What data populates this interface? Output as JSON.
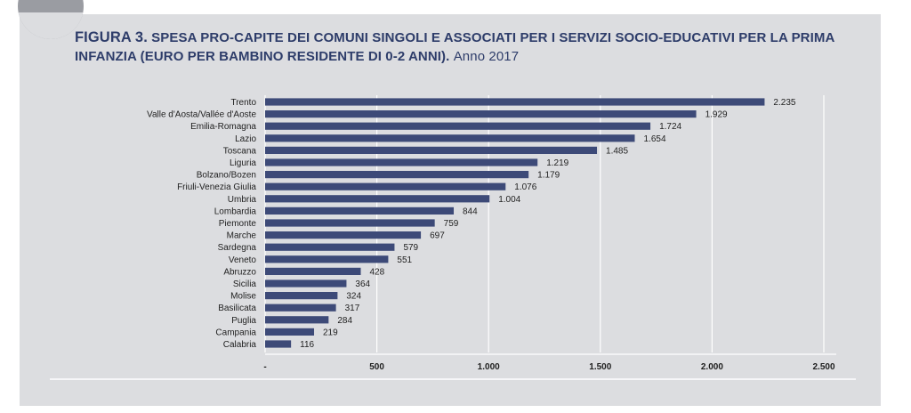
{
  "figure": {
    "label": "FIGURA 3.",
    "title": "SPESA PRO-CAPITE DEI COMUNI SINGOLI E ASSOCIATI PER I SERVIZI SOCIO-EDUCATIVI PER LA PRIMA INFANZIA (EURO PER BAMBINO RESIDENTE DI 0-2 ANNI).",
    "year": "Anno 2017"
  },
  "colors": {
    "bar": "#3d4a78",
    "panel": "#dcdde0",
    "title": "#2e3d6a"
  },
  "chart_data": {
    "type": "bar",
    "orientation": "horizontal",
    "categories": [
      "Trento",
      "Valle d'Aosta/Vallée d'Aoste",
      "Emilia-Romagna",
      "Lazio",
      "Toscana",
      "Liguria",
      "Bolzano/Bozen",
      "Friuli-Venezia Giulia",
      "Umbria",
      "Lombardia",
      "Piemonte",
      "Marche",
      "Sardegna",
      "Veneto",
      "Abruzzo",
      "Sicilia",
      "Molise",
      "Basilicata",
      "Puglia",
      "Campania",
      "Calabria"
    ],
    "values": [
      2235,
      1929,
      1724,
      1654,
      1485,
      1219,
      1179,
      1076,
      1004,
      844,
      759,
      697,
      579,
      551,
      428,
      364,
      324,
      317,
      284,
      219,
      116
    ],
    "value_labels": [
      "2.235",
      "1.929",
      "1.724",
      "1.654",
      "1.485",
      "1.219",
      "1.179",
      "1.076",
      "1.004",
      "844",
      "759",
      "697",
      "579",
      "551",
      "428",
      "364",
      "324",
      "317",
      "284",
      "219",
      "116"
    ],
    "xlim": [
      0,
      2500
    ],
    "x_ticks": [
      0,
      500,
      1000,
      1500,
      2000,
      2500
    ],
    "x_tick_labels": [
      "-",
      "500",
      "1.000",
      "1.500",
      "2.000",
      "2.500"
    ],
    "grid": true,
    "legend": "none"
  }
}
